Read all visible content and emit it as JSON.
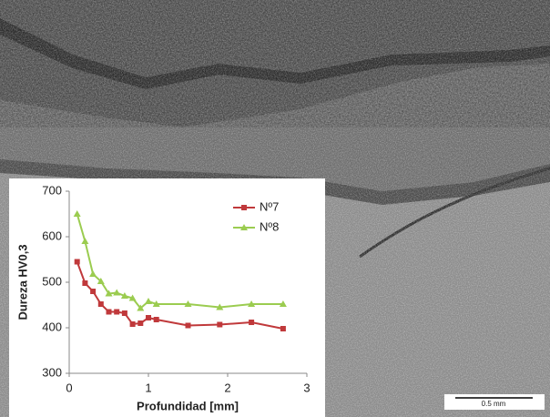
{
  "chart_data": {
    "type": "line",
    "x": [
      0.1,
      0.2,
      0.3,
      0.4,
      0.5,
      0.6,
      0.7,
      0.8,
      0.9,
      1.0,
      1.1,
      1.5,
      1.9,
      2.3,
      2.7
    ],
    "series": [
      {
        "name": "Nº7",
        "color": "#c0393b",
        "marker": "square",
        "values": [
          545,
          498,
          480,
          452,
          435,
          435,
          432,
          408,
          410,
          422,
          418,
          405,
          407,
          412,
          398
        ]
      },
      {
        "name": "Nº8",
        "color": "#9bcc50",
        "marker": "triangle",
        "values": [
          650,
          590,
          518,
          502,
          475,
          477,
          470,
          465,
          443,
          458,
          452,
          452,
          445,
          452,
          452
        ]
      }
    ],
    "x_label": "Profundidad [mm]",
    "y_label": "Dureza HV0,3",
    "xlim": [
      0,
      3
    ],
    "xticks": [
      0,
      1,
      2,
      3
    ],
    "ylim": [
      300,
      700
    ],
    "yticks": [
      300,
      400,
      500,
      600,
      700
    ],
    "legend": "upper-right",
    "grid": false
  },
  "scale_bar_label": "0.5 mm"
}
